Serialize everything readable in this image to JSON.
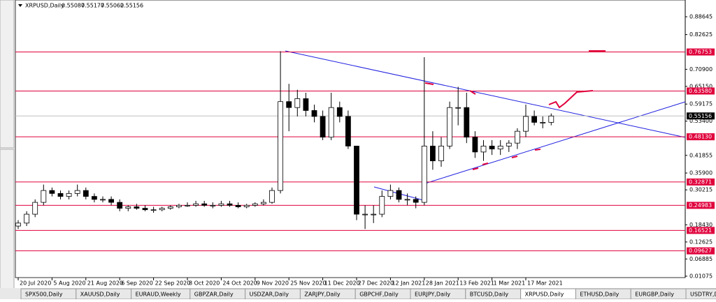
{
  "chart_data": {
    "type": "candlestick",
    "title": "XRPUSD,Daily",
    "header_values": [
      0.55087,
      0.55177,
      0.55062,
      0.55156
    ],
    "categories": [
      "20 Jul 2020",
      null,
      null,
      null,
      "5 Aug 2020",
      null,
      null,
      null,
      "21 Aug 2020",
      null,
      null,
      null,
      "6 Sep 2020",
      null,
      null,
      null,
      "22 Sep 2020",
      null,
      null,
      null,
      "8 Oct 2020",
      null,
      null,
      null,
      "24 Oct 2020",
      null,
      null,
      null,
      "9 Nov 2020",
      null,
      null,
      null,
      "25 Nov 2020",
      null,
      null,
      null,
      "11 Dec 2020",
      null,
      null,
      null,
      "27 Dec 2020",
      null,
      null,
      null,
      "12 Jan 2021",
      null,
      null,
      null,
      "28 Jan 2021",
      null,
      null,
      null,
      "13 Feb 2021",
      null,
      null,
      null,
      "1 Mar 2021",
      null,
      null,
      null,
      "17 Mar 2021",
      null,
      null,
      null
    ],
    "open": [
      0.18,
      0.19,
      0.22,
      0.26,
      0.3,
      0.29,
      0.28,
      0.29,
      0.3,
      0.28,
      0.27,
      0.27,
      0.26,
      0.24,
      0.245,
      0.24,
      0.235,
      0.235,
      0.24,
      0.245,
      0.25,
      0.25,
      0.255,
      0.25,
      0.25,
      0.255,
      0.25,
      0.245,
      0.25,
      0.255,
      0.26,
      0.3,
      0.6,
      0.58,
      0.61,
      0.57,
      0.55,
      0.48,
      0.58,
      0.55,
      0.45,
      0.22,
      0.22,
      0.22,
      0.28,
      0.3,
      0.27,
      0.27,
      0.26,
      0.45,
      0.4,
      0.45,
      0.58,
      0.58,
      0.48,
      0.43,
      0.45,
      0.44,
      0.45,
      0.46,
      0.5,
      0.55,
      0.53,
      0.53
    ],
    "high": [
      0.2,
      0.23,
      0.27,
      0.32,
      0.31,
      0.3,
      0.3,
      0.32,
      0.31,
      0.29,
      0.28,
      0.28,
      0.27,
      0.25,
      0.255,
      0.25,
      0.245,
      0.245,
      0.25,
      0.255,
      0.26,
      0.265,
      0.265,
      0.26,
      0.265,
      0.265,
      0.26,
      0.255,
      0.26,
      0.27,
      0.31,
      0.77,
      0.66,
      0.64,
      0.63,
      0.59,
      0.57,
      0.63,
      0.6,
      0.57,
      0.45,
      0.25,
      0.25,
      0.3,
      0.32,
      0.31,
      0.29,
      0.28,
      0.75,
      0.5,
      0.48,
      0.6,
      0.65,
      0.63,
      0.5,
      0.47,
      0.47,
      0.47,
      0.47,
      0.51,
      0.59,
      0.57,
      0.55,
      0.56
    ],
    "low": [
      0.17,
      0.18,
      0.21,
      0.25,
      0.28,
      0.27,
      0.27,
      0.28,
      0.27,
      0.26,
      0.26,
      0.25,
      0.23,
      0.23,
      0.235,
      0.23,
      0.225,
      0.23,
      0.235,
      0.24,
      0.245,
      0.245,
      0.245,
      0.24,
      0.245,
      0.245,
      0.24,
      0.24,
      0.245,
      0.25,
      0.255,
      0.29,
      0.5,
      0.55,
      0.55,
      0.53,
      0.47,
      0.47,
      0.53,
      0.44,
      0.2,
      0.17,
      0.19,
      0.21,
      0.27,
      0.26,
      0.25,
      0.24,
      0.25,
      0.37,
      0.38,
      0.44,
      0.52,
      0.46,
      0.41,
      0.4,
      0.42,
      0.42,
      0.43,
      0.44,
      0.48,
      0.52,
      0.51,
      0.52
    ],
    "close": [
      0.19,
      0.22,
      0.26,
      0.3,
      0.29,
      0.28,
      0.29,
      0.3,
      0.28,
      0.27,
      0.27,
      0.26,
      0.24,
      0.245,
      0.24,
      0.235,
      0.235,
      0.24,
      0.245,
      0.25,
      0.25,
      0.255,
      0.25,
      0.25,
      0.255,
      0.25,
      0.245,
      0.25,
      0.255,
      0.26,
      0.3,
      0.6,
      0.58,
      0.61,
      0.57,
      0.55,
      0.48,
      0.58,
      0.55,
      0.45,
      0.22,
      0.22,
      0.22,
      0.28,
      0.3,
      0.27,
      0.27,
      0.26,
      0.45,
      0.4,
      0.45,
      0.58,
      0.58,
      0.48,
      0.43,
      0.45,
      0.44,
      0.45,
      0.46,
      0.5,
      0.55,
      0.53,
      0.53,
      0.55156
    ],
    "ylim": [
      0.006,
      0.943
    ],
    "yticks": [
      0.88645,
      0.82625,
      {
        "value": 0.709,
        "label": "0.70900"
      },
      {
        "value": 0.6515,
        "label": "0.65150"
      },
      0.59175,
      {
        "value": 0.534,
        "label": "0.53400"
      },
      0.41855,
      {
        "value": 0.359,
        "label": "0.35900"
      },
      0.30215,
      {
        "value": 0.1843,
        "label": "0.18430"
      },
      0.12625,
      0.06885,
      0.01075
    ],
    "levels": [
      0.76753,
      {
        "value": 0.6358,
        "label": "0.63580"
      },
      {
        "value": 0.4813,
        "label": "0.48130"
      },
      0.32871,
      0.24983,
      0.16521,
      0.09627
    ],
    "level_color": "#e0003c",
    "last_price": 0.55156
  },
  "tabs": [
    "SPX500,Daily",
    "XAUUSD,Daily",
    "EURAUD,Weekly",
    "GBPZAR,Daily",
    "USDZAR,Daily",
    "ZARJPY,Daily",
    "GBPCHF,Daily",
    "EURJPY,Daily",
    "BTCUSD,Daily",
    "XRPUSD,Daily",
    "ETHUSD,Daily",
    "EURGBP,Daily",
    "USDTRY,Daily"
  ],
  "active_tab": 9
}
